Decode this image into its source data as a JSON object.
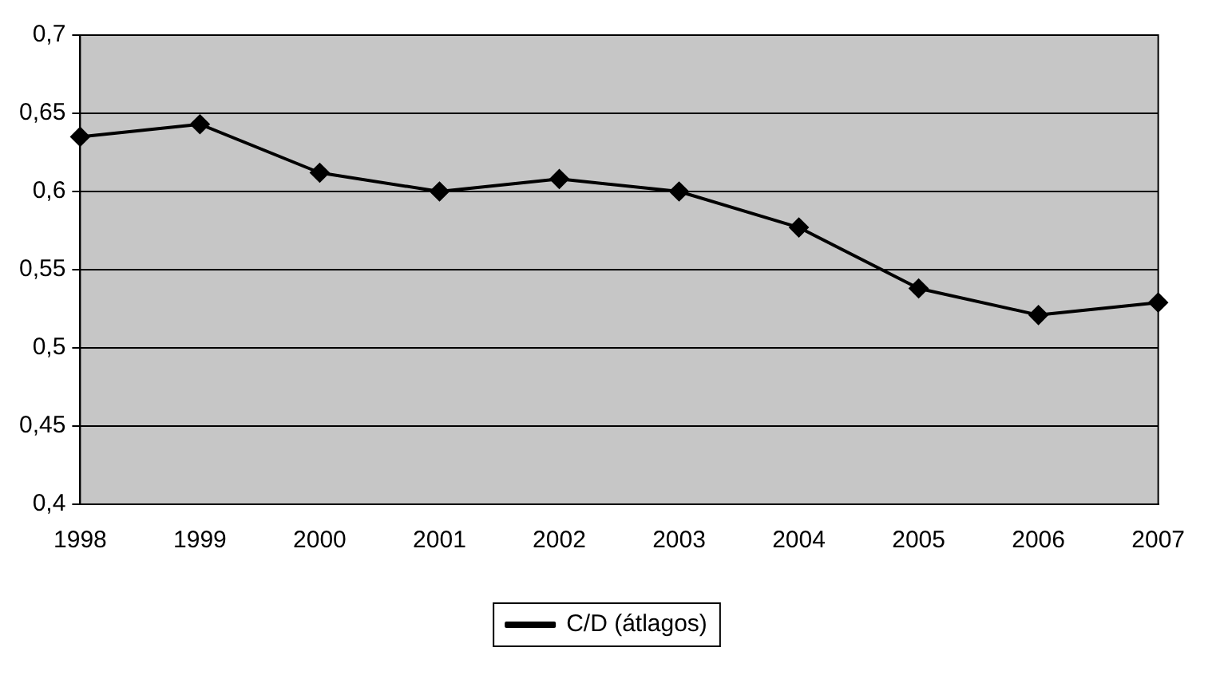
{
  "chart_data": {
    "type": "line",
    "categories": [
      "1998",
      "1999",
      "2000",
      "2001",
      "2002",
      "2003",
      "2004",
      "2005",
      "2006",
      "2007"
    ],
    "series": [
      {
        "name": "C/D (átlagos)",
        "color": "#000000",
        "values": [
          0.635,
          0.643,
          0.612,
          0.6,
          0.608,
          0.6,
          0.577,
          0.538,
          0.521,
          0.529
        ]
      }
    ],
    "ylim": [
      0.4,
      0.7
    ],
    "yticks": [
      {
        "value": 0.4,
        "label": "0,4"
      },
      {
        "value": 0.45,
        "label": "0,45"
      },
      {
        "value": 0.5,
        "label": "0,5"
      },
      {
        "value": 0.55,
        "label": "0,55"
      },
      {
        "value": 0.6,
        "label": "0,6"
      },
      {
        "value": 0.65,
        "label": "0,65"
      },
      {
        "value": 0.7,
        "label": "0,7"
      }
    ],
    "grid": "y",
    "legend": "bottom",
    "marker": "diamond",
    "line_style": "solid"
  }
}
